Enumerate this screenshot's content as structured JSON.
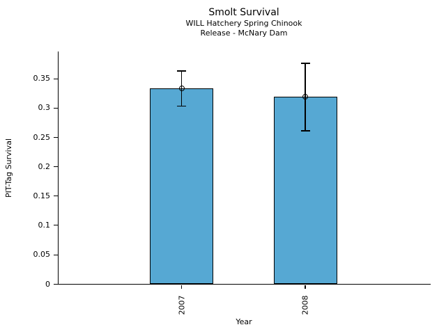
{
  "chart_data": {
    "type": "bar",
    "title": "Smolt Survival",
    "subtitle": [
      "WILL Hatchery Spring Chinook",
      "Release - McNary Dam"
    ],
    "xlabel": "Year",
    "ylabel": "PIT-Tag Survival",
    "categories": [
      "2007",
      "2008"
    ],
    "values": [
      0.333,
      0.319
    ],
    "error_low": [
      0.303,
      0.261
    ],
    "error_high": [
      0.363,
      0.376
    ],
    "yticks": [
      0,
      0.05,
      0.1,
      0.15,
      0.2,
      0.25,
      0.3,
      0.35
    ],
    "ytick_labels": [
      "0",
      "0.05",
      "0.1",
      "0.15",
      "0.2",
      "0.25",
      "0.3",
      "0.35"
    ],
    "ylim": [
      0,
      0.396
    ],
    "grid": false,
    "legend": "none",
    "marker": "open-circle",
    "bar_color": "#56a8d3",
    "bar_edge_color": "#000000",
    "axis_color": "#000000",
    "text_color": "#000000"
  }
}
